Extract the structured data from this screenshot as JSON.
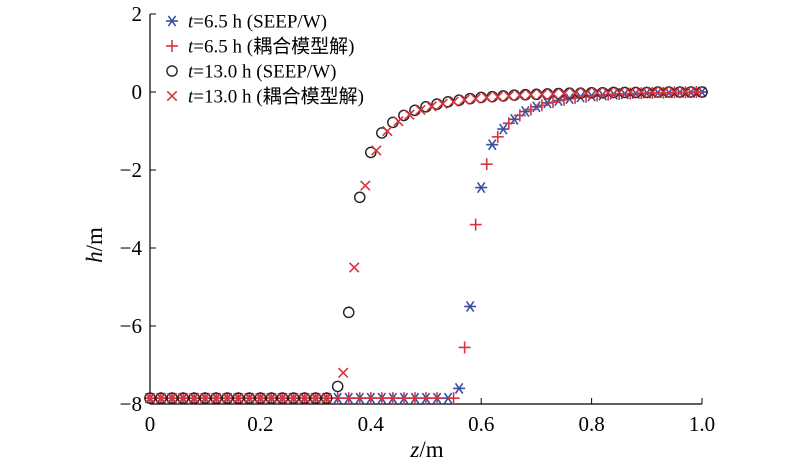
{
  "chart_data": {
    "type": "scatter",
    "xlabel": "z/m",
    "ylabel": "h/m",
    "xlim": [
      0,
      1.0
    ],
    "ylim": [
      -8,
      2
    ],
    "x_ticks": [
      "0",
      "0.2",
      "0.4",
      "0.6",
      "0.8",
      "1.0"
    ],
    "y_ticks": [
      "2",
      "0",
      "−2",
      "−4",
      "−6",
      "−8"
    ],
    "legend_position": "top-left",
    "series": [
      {
        "name": "t=6.5 h (SEEP/W)",
        "marker": "asterisk",
        "color": "#3a4fa0",
        "x": [
          0,
          0.02,
          0.04,
          0.06,
          0.08,
          0.1,
          0.12,
          0.14,
          0.16,
          0.18,
          0.2,
          0.22,
          0.24,
          0.26,
          0.28,
          0.3,
          0.32,
          0.34,
          0.36,
          0.38,
          0.4,
          0.42,
          0.44,
          0.46,
          0.48,
          0.5,
          0.52,
          0.54,
          0.56,
          0.58,
          0.6,
          0.62,
          0.64,
          0.66,
          0.68,
          0.7,
          0.72,
          0.74,
          0.76,
          0.78,
          0.8,
          0.82,
          0.84,
          0.86,
          0.88,
          0.9,
          0.92,
          0.94,
          0.96,
          0.98,
          1.0
        ],
        "y": [
          -7.85,
          -7.85,
          -7.85,
          -7.85,
          -7.85,
          -7.85,
          -7.85,
          -7.85,
          -7.85,
          -7.85,
          -7.85,
          -7.85,
          -7.85,
          -7.85,
          -7.85,
          -7.85,
          -7.85,
          -7.85,
          -7.85,
          -7.85,
          -7.85,
          -7.85,
          -7.85,
          -7.85,
          -7.85,
          -7.85,
          -7.85,
          -7.85,
          -7.6,
          -5.5,
          -2.45,
          -1.35,
          -0.95,
          -0.7,
          -0.5,
          -0.38,
          -0.28,
          -0.22,
          -0.17,
          -0.13,
          -0.1,
          -0.08,
          -0.06,
          -0.05,
          -0.04,
          -0.03,
          -0.02,
          -0.02,
          -0.01,
          -0.01,
          0
        ]
      },
      {
        "name": "t=6.5 h (耦合模型解)",
        "marker": "plus",
        "color": "#d9343e",
        "x": [
          0,
          0.02,
          0.04,
          0.06,
          0.08,
          0.1,
          0.12,
          0.14,
          0.16,
          0.18,
          0.2,
          0.22,
          0.24,
          0.26,
          0.28,
          0.3,
          0.32,
          0.34,
          0.36,
          0.38,
          0.4,
          0.42,
          0.44,
          0.46,
          0.48,
          0.5,
          0.52,
          0.55,
          0.57,
          0.59,
          0.61,
          0.63,
          0.65,
          0.67,
          0.69,
          0.71,
          0.73,
          0.75,
          0.77,
          0.79,
          0.81,
          0.83,
          0.85,
          0.87,
          0.89,
          0.91,
          0.93,
          0.95,
          0.97,
          0.99
        ],
        "y": [
          -7.85,
          -7.85,
          -7.85,
          -7.85,
          -7.85,
          -7.85,
          -7.85,
          -7.85,
          -7.85,
          -7.85,
          -7.85,
          -7.85,
          -7.85,
          -7.85,
          -7.85,
          -7.85,
          -7.85,
          -7.85,
          -7.85,
          -7.85,
          -7.85,
          -7.85,
          -7.85,
          -7.85,
          -7.85,
          -7.85,
          -7.85,
          -7.85,
          -6.55,
          -3.4,
          -1.85,
          -1.15,
          -0.8,
          -0.6,
          -0.45,
          -0.34,
          -0.26,
          -0.2,
          -0.15,
          -0.12,
          -0.09,
          -0.07,
          -0.05,
          -0.04,
          -0.03,
          -0.02,
          -0.02,
          -0.01,
          -0.01,
          0
        ]
      },
      {
        "name": "t=13.0 h (SEEP/W)",
        "marker": "circle",
        "color": "#222222",
        "x": [
          0,
          0.02,
          0.04,
          0.06,
          0.08,
          0.1,
          0.12,
          0.14,
          0.16,
          0.18,
          0.2,
          0.22,
          0.24,
          0.26,
          0.28,
          0.3,
          0.32,
          0.34,
          0.36,
          0.38,
          0.4,
          0.42,
          0.44,
          0.46,
          0.48,
          0.5,
          0.52,
          0.54,
          0.56,
          0.58,
          0.6,
          0.62,
          0.64,
          0.66,
          0.68,
          0.7,
          0.72,
          0.74,
          0.76,
          0.78,
          0.8,
          0.82,
          0.84,
          0.86,
          0.88,
          0.9,
          0.92,
          0.94,
          0.96,
          0.98,
          1.0
        ],
        "y": [
          -7.85,
          -7.85,
          -7.85,
          -7.85,
          -7.85,
          -7.85,
          -7.85,
          -7.85,
          -7.85,
          -7.85,
          -7.85,
          -7.85,
          -7.85,
          -7.85,
          -7.85,
          -7.85,
          -7.85,
          -7.55,
          -5.65,
          -2.7,
          -1.55,
          -1.05,
          -0.78,
          -0.6,
          -0.47,
          -0.38,
          -0.31,
          -0.25,
          -0.21,
          -0.17,
          -0.14,
          -0.12,
          -0.1,
          -0.08,
          -0.07,
          -0.06,
          -0.05,
          -0.04,
          -0.03,
          -0.03,
          -0.02,
          -0.02,
          -0.01,
          -0.01,
          -0.01,
          -0.01,
          0,
          0,
          0,
          0,
          0
        ]
      },
      {
        "name": "t=13.0 h (耦合模型解)",
        "marker": "x",
        "color": "#d9343e",
        "x": [
          0,
          0.02,
          0.04,
          0.06,
          0.08,
          0.1,
          0.12,
          0.14,
          0.16,
          0.18,
          0.2,
          0.22,
          0.24,
          0.26,
          0.28,
          0.3,
          0.32,
          0.35,
          0.37,
          0.39,
          0.41,
          0.43,
          0.45,
          0.47,
          0.49,
          0.51,
          0.53,
          0.55,
          0.57,
          0.59,
          0.61,
          0.63,
          0.65,
          0.67,
          0.69,
          0.71,
          0.73,
          0.75,
          0.77,
          0.79,
          0.81,
          0.83,
          0.85,
          0.87,
          0.89,
          0.91,
          0.93,
          0.95,
          0.97,
          0.99
        ],
        "y": [
          -7.85,
          -7.85,
          -7.85,
          -7.85,
          -7.85,
          -7.85,
          -7.85,
          -7.85,
          -7.85,
          -7.85,
          -7.85,
          -7.85,
          -7.85,
          -7.85,
          -7.85,
          -7.85,
          -7.85,
          -7.2,
          -4.5,
          -2.4,
          -1.5,
          -1.0,
          -0.75,
          -0.58,
          -0.46,
          -0.37,
          -0.3,
          -0.25,
          -0.2,
          -0.17,
          -0.14,
          -0.12,
          -0.1,
          -0.08,
          -0.07,
          -0.06,
          -0.05,
          -0.04,
          -0.03,
          -0.03,
          -0.02,
          -0.02,
          -0.01,
          -0.01,
          -0.01,
          -0.01,
          0,
          0,
          0,
          0
        ]
      }
    ]
  }
}
